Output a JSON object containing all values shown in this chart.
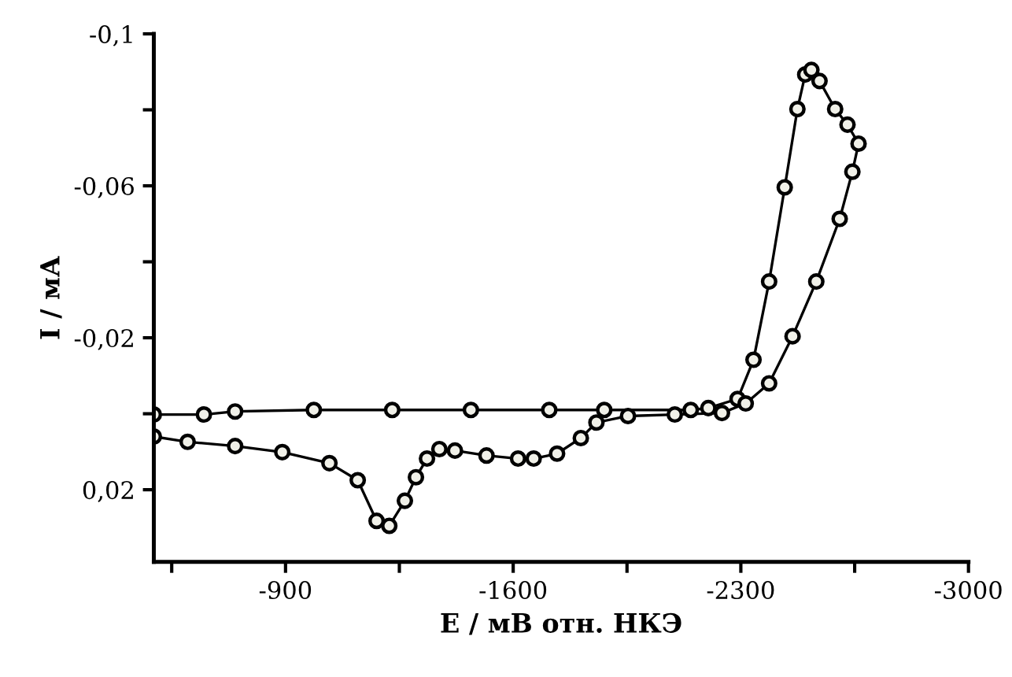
{
  "chart_data": {
    "type": "line",
    "xlabel": "E / мВ отн. НКЭ",
    "ylabel": "I / мА",
    "xlim": [
      -495,
      -3000
    ],
    "ylim": [
      0.039,
      -0.1
    ],
    "xticks": [
      {
        "value": -550,
        "label": null
      },
      -900,
      {
        "value": -1250,
        "label": null
      },
      -1600,
      {
        "value": -1950,
        "label": null
      },
      -2300,
      {
        "value": -2650,
        "label": null
      },
      -3000
    ],
    "yticks": [
      {
        "value": -0.1,
        "label": "-0,1"
      },
      {
        "value": -0.08,
        "label": null
      },
      {
        "value": -0.06,
        "label": "-0,06"
      },
      {
        "value": -0.04,
        "label": null
      },
      {
        "value": -0.02,
        "label": "-0,02"
      },
      {
        "value": 0,
        "label": null
      },
      {
        "value": 0.02,
        "label": "0,02"
      }
    ],
    "marker": "circle",
    "line_style": "solid",
    "series": [
      {
        "color": "#000000",
        "x": [
          -495,
          -649,
          -745,
          -987,
          -1228,
          -1470,
          -1711,
          -1880,
          -2146,
          -2200,
          -2290,
          -2339,
          -2387,
          -2435,
          -2474,
          -2498,
          -2517,
          -2542,
          -2590,
          -2628,
          -2662,
          -2643,
          -2604,
          -2532,
          -2459,
          -2387,
          -2315,
          -2242,
          -2097,
          -1953,
          -1856,
          -1808,
          -1735,
          -1663,
          -1615,
          -1518,
          -1421,
          -1373,
          -1335,
          -1301,
          -1267,
          -1219,
          -1180,
          -1122,
          -1035,
          -890,
          -745,
          -599,
          -495
        ],
        "values": [
          0.0002,
          0.0002,
          -0.0006,
          -0.001,
          -0.001,
          -0.001,
          -0.001,
          -0.001,
          -0.001,
          -0.0015,
          -0.0039,
          -0.0142,
          -0.0348,
          -0.0596,
          -0.0802,
          -0.0893,
          -0.0905,
          -0.0876,
          -0.0802,
          -0.0761,
          -0.0711,
          -0.0637,
          -0.0513,
          -0.0348,
          -0.0204,
          -0.008,
          -0.0027,
          -0.0002,
          0.0002,
          0.0006,
          0.0023,
          0.0064,
          0.0105,
          0.0118,
          0.0118,
          0.011,
          0.0097,
          0.0093,
          0.0118,
          0.0167,
          0.0229,
          0.0295,
          0.0282,
          0.0175,
          0.013,
          0.0101,
          0.0085,
          0.0074,
          0.006
        ]
      }
    ]
  }
}
